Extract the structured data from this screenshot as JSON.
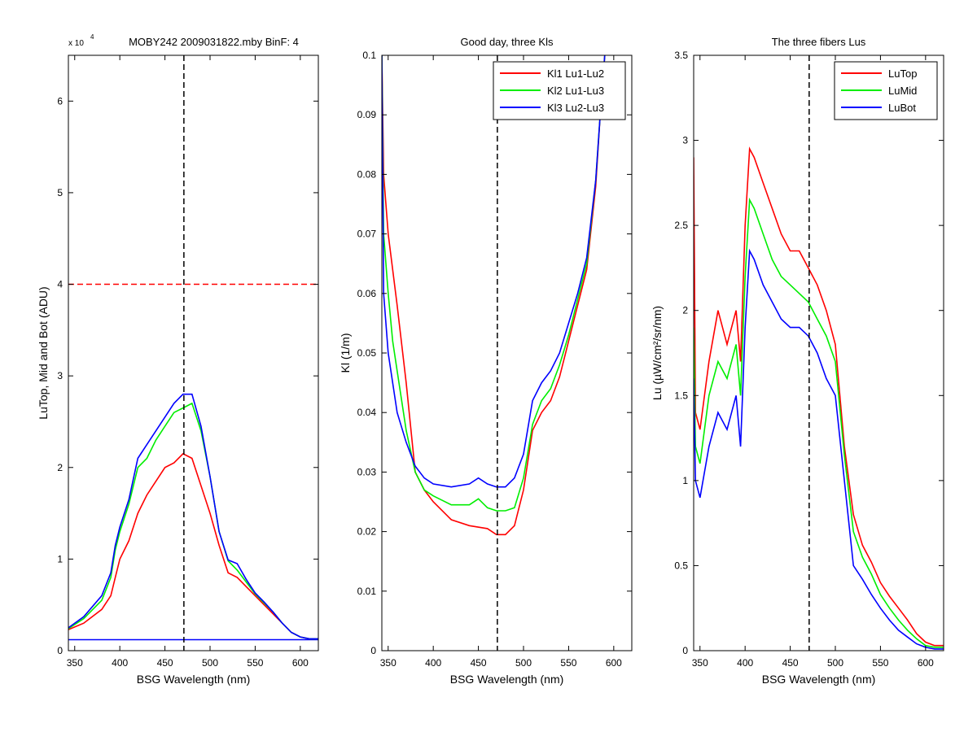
{
  "chart_data": [
    {
      "type": "line",
      "title": "MOBY242  2009031822.mby BinF: 4",
      "multiplier_label": "x 10",
      "multiplier_exp": "4",
      "xlabel": "BSG Wavelength (nm)",
      "ylabel": "LuTop, Mid and Bot (ADU)",
      "xlim": [
        343,
        620
      ],
      "ylim": [
        0,
        65000
      ],
      "xticks": [
        350,
        400,
        450,
        500,
        550,
        600
      ],
      "yticks": [
        0,
        10000,
        20000,
        30000,
        40000,
        50000,
        60000
      ],
      "ytick_labels": [
        "0",
        "1",
        "2",
        "3",
        "4",
        "5",
        "6"
      ],
      "vline_x": 471,
      "hlines": [
        {
          "y": 40000,
          "color": "#ff0000",
          "style": "dashed"
        },
        {
          "y": 1200,
          "color": "#0000ff",
          "style": "solid"
        }
      ],
      "grid": false,
      "series": [
        {
          "color": "#ff0000",
          "x": [
            343,
            360,
            380,
            390,
            395,
            400,
            410,
            420,
            430,
            440,
            450,
            460,
            470,
            480,
            490,
            500,
            510,
            520,
            530,
            540,
            550,
            560,
            570,
            580,
            590,
            600,
            610,
            620
          ],
          "y": [
            2300,
            3000,
            4500,
            6000,
            8000,
            10000,
            12000,
            15000,
            17000,
            18500,
            20000,
            20500,
            21500,
            21000,
            18000,
            15000,
            11500,
            8500,
            8000,
            7000,
            6000,
            5000,
            4000,
            3000,
            2000,
            1500,
            1300,
            1300
          ]
        },
        {
          "color": "#00ee00",
          "x": [
            343,
            360,
            380,
            390,
            395,
            400,
            410,
            420,
            430,
            440,
            450,
            460,
            470,
            480,
            490,
            500,
            510,
            520,
            530,
            540,
            550,
            560,
            570,
            580,
            590,
            600,
            610,
            620
          ],
          "y": [
            2400,
            3500,
            5500,
            8000,
            11000,
            13000,
            16000,
            20000,
            21000,
            23000,
            24500,
            26000,
            26500,
            27000,
            24000,
            19000,
            13000,
            9800,
            8800,
            7500,
            6200,
            5200,
            4200,
            3000,
            2000,
            1500,
            1300,
            1300
          ]
        },
        {
          "color": "#0000ff",
          "x": [
            343,
            360,
            380,
            390,
            395,
            400,
            410,
            420,
            430,
            440,
            450,
            460,
            470,
            480,
            490,
            500,
            510,
            520,
            530,
            540,
            550,
            560,
            570,
            580,
            590,
            600,
            610,
            620
          ],
          "y": [
            2500,
            3700,
            6000,
            8500,
            11500,
            13500,
            16500,
            21000,
            22500,
            24000,
            25500,
            27000,
            28000,
            28000,
            24500,
            19000,
            13000,
            9900,
            9500,
            7800,
            6300,
            5300,
            4200,
            3000,
            2000,
            1500,
            1300,
            1300
          ]
        }
      ]
    },
    {
      "type": "line",
      "title": "Good day, three Kls",
      "xlabel": "BSG Wavelength (nm)",
      "ylabel": "Kl (1/m)",
      "xlim": [
        343,
        620
      ],
      "ylim": [
        0,
        0.1
      ],
      "xticks": [
        350,
        400,
        450,
        500,
        550,
        600
      ],
      "yticks": [
        0,
        0.01,
        0.02,
        0.03,
        0.04,
        0.05,
        0.06,
        0.07,
        0.08,
        0.09,
        0.1
      ],
      "ytick_labels": [
        "0",
        "0.01",
        "0.02",
        "0.03",
        "0.04",
        "0.05",
        "0.06",
        "0.07",
        "0.08",
        "0.09",
        "0.1"
      ],
      "vline_x": 471,
      "legend_position": "top-right",
      "grid": false,
      "series": [
        {
          "name": "Kl1 Lu1-Lu2",
          "color": "#ff0000",
          "x": [
            343,
            345,
            350,
            355,
            360,
            370,
            380,
            390,
            400,
            420,
            440,
            460,
            470,
            480,
            490,
            500,
            510,
            520,
            530,
            540,
            550,
            560,
            570,
            580,
            585,
            590
          ],
          "y": [
            0.1,
            0.08,
            0.07,
            0.064,
            0.058,
            0.045,
            0.03,
            0.027,
            0.025,
            0.022,
            0.021,
            0.0205,
            0.0195,
            0.0195,
            0.021,
            0.027,
            0.037,
            0.04,
            0.042,
            0.046,
            0.052,
            0.058,
            0.064,
            0.078,
            0.09,
            0.1
          ]
        },
        {
          "name": "Kl2 Lu1-Lu3",
          "color": "#00ee00",
          "x": [
            343,
            345,
            350,
            355,
            360,
            370,
            380,
            390,
            400,
            420,
            440,
            450,
            460,
            470,
            480,
            490,
            500,
            510,
            520,
            530,
            540,
            550,
            560,
            570,
            580,
            585,
            590
          ],
          "y": [
            0.1,
            0.07,
            0.06,
            0.052,
            0.047,
            0.037,
            0.03,
            0.027,
            0.026,
            0.0245,
            0.0245,
            0.0255,
            0.024,
            0.0235,
            0.0235,
            0.024,
            0.029,
            0.038,
            0.042,
            0.044,
            0.048,
            0.053,
            0.059,
            0.065,
            0.079,
            0.09,
            0.1
          ]
        },
        {
          "name": "Kl3 Lu2-Lu3",
          "color": "#0000ff",
          "x": [
            343,
            345,
            350,
            355,
            360,
            370,
            380,
            390,
            400,
            420,
            440,
            450,
            460,
            470,
            480,
            490,
            500,
            510,
            520,
            530,
            540,
            550,
            560,
            570,
            580,
            585,
            590
          ],
          "y": [
            0.1,
            0.06,
            0.05,
            0.045,
            0.04,
            0.035,
            0.031,
            0.029,
            0.028,
            0.0275,
            0.028,
            0.029,
            0.028,
            0.0275,
            0.0275,
            0.029,
            0.033,
            0.042,
            0.045,
            0.047,
            0.05,
            0.055,
            0.06,
            0.066,
            0.079,
            0.09,
            0.1
          ]
        }
      ]
    },
    {
      "type": "line",
      "title": "The three fibers Lus",
      "xlabel": "BSG Wavelength (nm)",
      "ylabel": "Lu (µW/cm²/sr/nm)",
      "xlim": [
        343,
        620
      ],
      "ylim": [
        0,
        3.5
      ],
      "xticks": [
        350,
        400,
        450,
        500,
        550,
        600
      ],
      "yticks": [
        0,
        0.5,
        1,
        1.5,
        2,
        2.5,
        3,
        3.5
      ],
      "ytick_labels": [
        "0",
        "0.5",
        "1",
        "1.5",
        "2",
        "2.5",
        "3",
        "3.5"
      ],
      "vline_x": 471,
      "legend_position": "top-right",
      "grid": false,
      "series": [
        {
          "name": "LuTop",
          "color": "#ff0000",
          "x": [
            343,
            345,
            350,
            360,
            370,
            380,
            390,
            395,
            400,
            405,
            410,
            420,
            430,
            440,
            450,
            460,
            470,
            480,
            490,
            500,
            510,
            520,
            530,
            540,
            550,
            560,
            570,
            580,
            590,
            600,
            610,
            620
          ],
          "y": [
            2.9,
            1.4,
            1.3,
            1.7,
            2.0,
            1.8,
            2.0,
            1.7,
            2.5,
            2.95,
            2.9,
            2.75,
            2.6,
            2.45,
            2.35,
            2.35,
            2.25,
            2.15,
            2.0,
            1.8,
            1.2,
            0.8,
            0.62,
            0.52,
            0.4,
            0.32,
            0.25,
            0.18,
            0.1,
            0.05,
            0.03,
            0.03
          ]
        },
        {
          "name": "LuMid",
          "color": "#00ee00",
          "x": [
            343,
            345,
            350,
            360,
            370,
            380,
            390,
            395,
            400,
            405,
            410,
            420,
            430,
            440,
            450,
            460,
            470,
            480,
            490,
            500,
            510,
            520,
            530,
            540,
            550,
            560,
            570,
            580,
            590,
            600,
            610,
            620
          ],
          "y": [
            1.9,
            1.2,
            1.1,
            1.5,
            1.7,
            1.6,
            1.8,
            1.5,
            2.2,
            2.65,
            2.6,
            2.45,
            2.3,
            2.2,
            2.15,
            2.1,
            2.05,
            1.95,
            1.85,
            1.7,
            1.15,
            0.7,
            0.55,
            0.45,
            0.33,
            0.25,
            0.18,
            0.12,
            0.07,
            0.03,
            0.02,
            0.02
          ]
        },
        {
          "name": "LuBot",
          "color": "#0000ff",
          "x": [
            343,
            345,
            350,
            360,
            370,
            380,
            390,
            395,
            400,
            405,
            410,
            420,
            430,
            440,
            450,
            460,
            470,
            480,
            490,
            500,
            510,
            520,
            530,
            540,
            550,
            560,
            570,
            580,
            590,
            600,
            610,
            620
          ],
          "y": [
            1.6,
            1.0,
            0.9,
            1.2,
            1.4,
            1.3,
            1.5,
            1.2,
            1.9,
            2.35,
            2.3,
            2.15,
            2.05,
            1.95,
            1.9,
            1.9,
            1.85,
            1.75,
            1.6,
            1.5,
            1.0,
            0.5,
            0.42,
            0.33,
            0.25,
            0.18,
            0.12,
            0.08,
            0.04,
            0.02,
            0.01,
            0.01
          ]
        }
      ]
    }
  ]
}
